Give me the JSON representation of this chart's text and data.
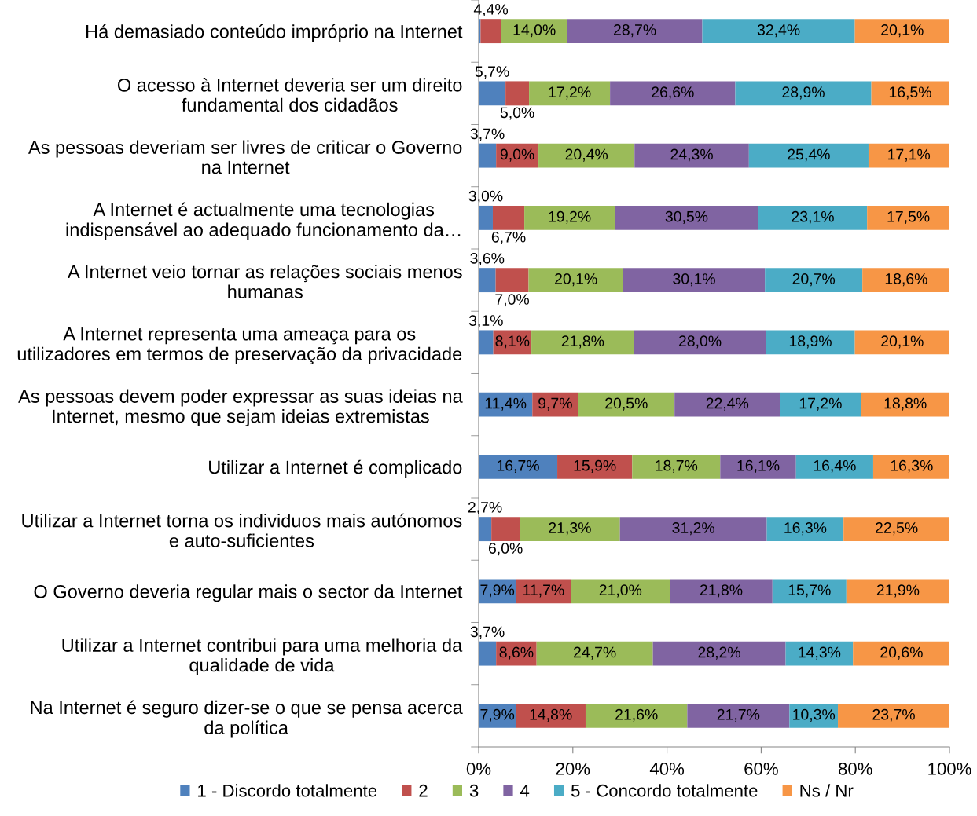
{
  "chart_data": {
    "type": "bar",
    "orientation": "horizontal",
    "stacked": true,
    "categories": [
      "Há demasiado conteúdo impróprio na Internet",
      "O acesso à Internet deveria ser um direito\nfundamental dos cidadãos",
      "As pessoas deveriam ser livres de criticar o Governo\nna Internet",
      "A Internet é actualmente uma tecnologias\nindispensável ao adequado funcionamento da…",
      "A Internet veio tornar as relações sociais menos\nhumanas",
      "A Internet representa uma ameaça para os\nutilizadores em termos de preservação da privacidade",
      "As pessoas devem poder expressar as suas ideias na\nInternet, mesmo que sejam ideias extremistas",
      "Utilizar a Internet é complicado",
      "Utilizar a Internet torna os individuos mais autónomos\ne auto-suficientes",
      "O Governo deveria regular mais o sector da Internet",
      "Utilizar a Internet contribui para uma melhoria da\nqualidade de vida",
      "Na Internet é seguro dizer-se o que se pensa acerca\nda política"
    ],
    "series": [
      {
        "name": "1 - Discordo totalmente",
        "color": "#4f81bd",
        "values": [
          0.4,
          5.7,
          3.7,
          3.0,
          3.6,
          3.1,
          11.4,
          16.7,
          2.7,
          7.9,
          3.7,
          7.9
        ],
        "value_labels": [
          null,
          "5,7%",
          "3,7%",
          "3,0%",
          "3,6%",
          "3,1%",
          "11,4%",
          "16,7%",
          "2,7%",
          "7,9%",
          "3,7%",
          "7,9%"
        ]
      },
      {
        "name": "2",
        "color": "#c0504d",
        "values": [
          4.4,
          5.0,
          9.0,
          6.7,
          7.0,
          8.1,
          9.7,
          15.9,
          6.0,
          11.7,
          8.6,
          14.8
        ],
        "value_labels": [
          "4,4%",
          "5,0%",
          "9,0%",
          "6,7%",
          "7,0%",
          "8,1%",
          "9,7%",
          "15,9%",
          "6,0%",
          "11,7%",
          "8,6%",
          "14,8%"
        ]
      },
      {
        "name": "3",
        "color": "#9bbb59",
        "values": [
          14.0,
          17.2,
          20.4,
          19.2,
          20.1,
          21.8,
          20.5,
          18.7,
          21.3,
          21.0,
          24.7,
          21.6
        ],
        "value_labels": [
          "14,0%",
          "17,2%",
          "20,4%",
          "19,2%",
          "20,1%",
          "21,8%",
          "20,5%",
          "18,7%",
          "21,3%",
          "21,0%",
          "24,7%",
          "21,6%"
        ]
      },
      {
        "name": "4",
        "color": "#8064a2",
        "values": [
          28.7,
          26.6,
          24.3,
          30.5,
          30.1,
          28.0,
          22.4,
          16.1,
          31.2,
          21.8,
          28.2,
          21.7
        ],
        "value_labels": [
          "28,7%",
          "26,6%",
          "24,3%",
          "30,5%",
          "30,1%",
          "28,0%",
          "22,4%",
          "16,1%",
          "31,2%",
          "21,8%",
          "28,2%",
          "21,7%"
        ]
      },
      {
        "name": "5 - Concordo totalmente",
        "color": "#4bacc6",
        "values": [
          32.4,
          28.9,
          25.4,
          23.1,
          20.7,
          18.9,
          17.2,
          16.4,
          16.3,
          15.7,
          14.3,
          10.3
        ],
        "value_labels": [
          "32,4%",
          "28,9%",
          "25,4%",
          "23,1%",
          "20,7%",
          "18,9%",
          "17,2%",
          "16,4%",
          "16,3%",
          "15,7%",
          "14,3%",
          "10,3%"
        ]
      },
      {
        "name": "Ns / Nr",
        "color": "#f79646",
        "values": [
          20.1,
          16.5,
          17.1,
          17.5,
          18.6,
          20.1,
          18.8,
          16.3,
          22.5,
          21.9,
          20.6,
          23.7
        ],
        "value_labels": [
          "20,1%",
          "16,5%",
          "17,1%",
          "17,5%",
          "18,6%",
          "20,1%",
          "18,8%",
          "16,3%",
          "22,5%",
          "21,9%",
          "20,6%",
          "23,7%"
        ]
      }
    ],
    "xlim": [
      0,
      100
    ],
    "xticks": [
      {
        "value": 0,
        "label": "0%"
      },
      {
        "value": 20,
        "label": "20%"
      },
      {
        "value": 40,
        "label": "40%"
      },
      {
        "value": 60,
        "label": "60%"
      },
      {
        "value": 80,
        "label": "80%"
      },
      {
        "value": 100,
        "label": "100%"
      }
    ],
    "legend": "bottom"
  }
}
